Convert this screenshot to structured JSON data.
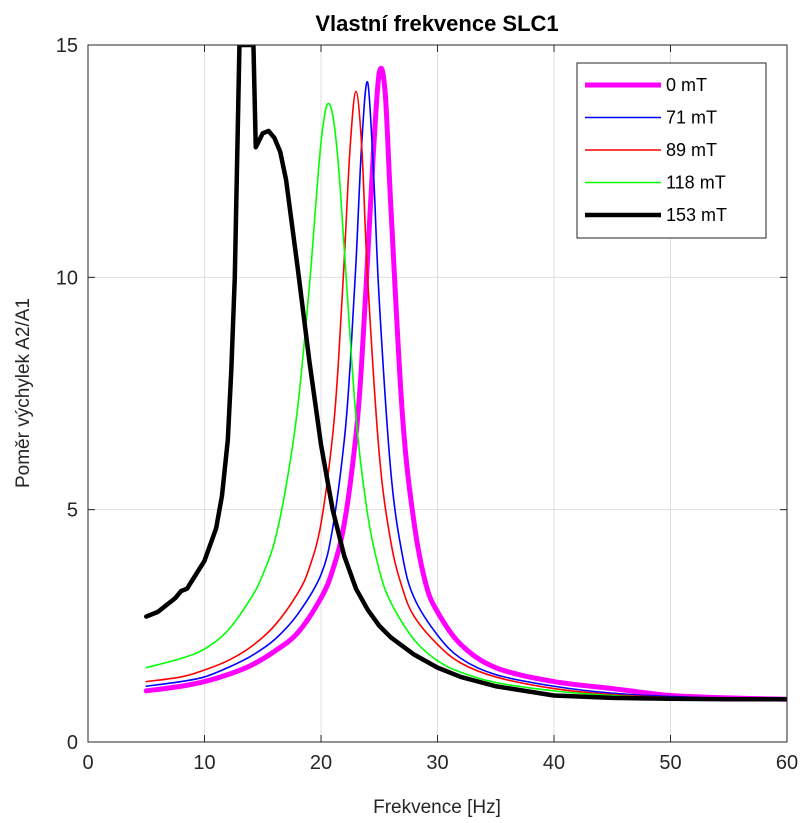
{
  "chart_data": {
    "type": "line",
    "title": "Vlastní frekvence SLC1",
    "xlabel": "Frekvence [Hz]",
    "ylabel": "Poměr výchylek A2/A1",
    "xlim": [
      0,
      60
    ],
    "ylim": [
      0,
      15
    ],
    "xticks": [
      0,
      10,
      20,
      30,
      40,
      50,
      60
    ],
    "yticks": [
      0,
      5,
      10,
      15
    ],
    "grid": true,
    "legend_position": "top-right",
    "series": [
      {
        "name": "0 mT",
        "color": "#ff00ff",
        "width": 5,
        "x": [
          5,
          8,
          10,
          12,
          14,
          16,
          18,
          20,
          21,
          22,
          23,
          23.5,
          24,
          24.5,
          25,
          25.5,
          26,
          27,
          28,
          29,
          30,
          32,
          35,
          40,
          45,
          50,
          55,
          60
        ],
        "y": [
          1.1,
          1.2,
          1.3,
          1.45,
          1.65,
          1.95,
          2.35,
          3.1,
          3.7,
          4.7,
          6.6,
          8.2,
          10.4,
          12.7,
          14.4,
          14.0,
          11.5,
          7.0,
          4.7,
          3.4,
          2.8,
          2.1,
          1.6,
          1.3,
          1.15,
          1.0,
          0.95,
          0.92
        ]
      },
      {
        "name": "71 mT",
        "color": "#0000ff",
        "width": 1.6,
        "x": [
          5,
          8,
          10,
          12,
          14,
          16,
          18,
          20,
          21,
          22,
          22.5,
          23,
          23.5,
          24,
          24.5,
          25,
          26,
          27,
          28,
          30,
          32,
          35,
          40,
          45,
          50,
          55,
          60
        ],
        "y": [
          1.2,
          1.3,
          1.4,
          1.6,
          1.85,
          2.2,
          2.75,
          3.6,
          4.6,
          6.5,
          8.1,
          10.3,
          12.9,
          14.2,
          12.3,
          9.5,
          5.8,
          4.0,
          3.1,
          2.3,
          1.8,
          1.45,
          1.2,
          1.05,
          0.98,
          0.94,
          0.92
        ]
      },
      {
        "name": "89 mT",
        "color": "#ff0000",
        "width": 1.6,
        "x": [
          5,
          8,
          10,
          12,
          14,
          16,
          18,
          19,
          20,
          21,
          21.5,
          22,
          22.5,
          23,
          23.5,
          24,
          25,
          26,
          27,
          28,
          30,
          32,
          35,
          40,
          45,
          50,
          55,
          60
        ],
        "y": [
          1.3,
          1.4,
          1.55,
          1.75,
          2.05,
          2.5,
          3.2,
          3.75,
          4.7,
          6.6,
          8.2,
          10.4,
          12.8,
          14.0,
          12.8,
          10.0,
          6.2,
          4.3,
          3.3,
          2.7,
          2.1,
          1.7,
          1.4,
          1.15,
          1.02,
          0.96,
          0.93,
          0.92
        ]
      },
      {
        "name": "118 mT",
        "color": "#00ff00",
        "width": 1.6,
        "x": [
          5,
          8,
          10,
          12,
          14,
          15,
          16,
          17,
          18,
          19,
          19.5,
          20,
          20.5,
          21,
          21.5,
          22,
          23,
          24,
          25,
          26,
          28,
          30,
          32,
          35,
          40,
          45,
          50,
          55,
          60
        ],
        "y": [
          1.6,
          1.8,
          2.0,
          2.4,
          3.1,
          3.6,
          4.3,
          5.5,
          7.2,
          9.8,
          11.4,
          12.9,
          13.7,
          13.5,
          12.4,
          10.6,
          7.0,
          4.9,
          3.7,
          3.0,
          2.2,
          1.75,
          1.5,
          1.28,
          1.1,
          1.0,
          0.95,
          0.93,
          0.92
        ]
      },
      {
        "name": "153 mT",
        "color": "#000000",
        "width": 4.5,
        "x": [
          5,
          6,
          7,
          7.5,
          8,
          8.5,
          9,
          10,
          11,
          11.5,
          12,
          12.3,
          12.6,
          12.8,
          13,
          13.2,
          13.4,
          14.2,
          14.4,
          14.6,
          15,
          15.5,
          16,
          16.5,
          17,
          18,
          19,
          20,
          21,
          22,
          23,
          24,
          25,
          26,
          28,
          30,
          32,
          35,
          40,
          45,
          50,
          55,
          60
        ],
        "y": [
          2.7,
          2.8,
          3.0,
          3.1,
          3.25,
          3.3,
          3.5,
          3.9,
          4.6,
          5.3,
          6.5,
          8.0,
          10.0,
          12.5,
          15,
          15,
          15,
          15,
          12.8,
          12.9,
          13.1,
          13.15,
          13.0,
          12.7,
          12.1,
          10.2,
          8.2,
          6.4,
          5.0,
          4.0,
          3.3,
          2.85,
          2.5,
          2.25,
          1.88,
          1.6,
          1.4,
          1.2,
          1.0,
          0.95,
          0.93,
          0.92,
          0.92
        ]
      }
    ]
  }
}
